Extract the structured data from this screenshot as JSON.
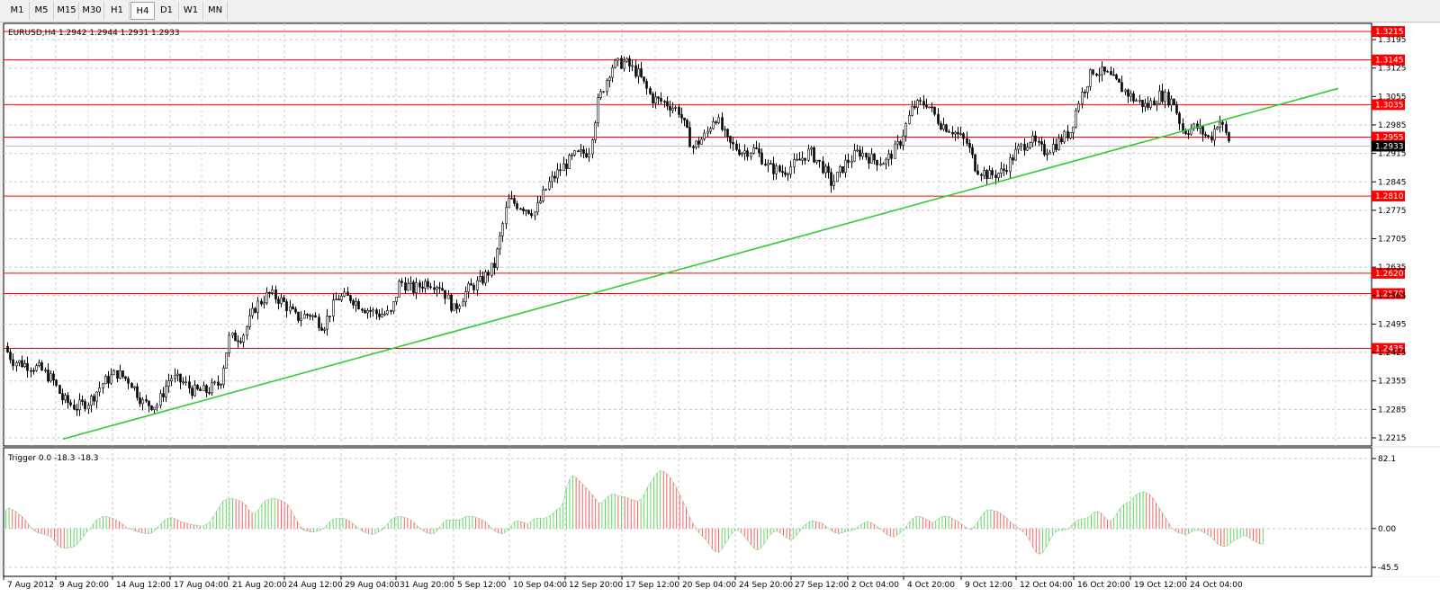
{
  "toolbar": {
    "timeframes": [
      "M1",
      "M5",
      "M15",
      "M30",
      "H1",
      "H4",
      "D1",
      "W1",
      "MN"
    ],
    "active": "H4"
  },
  "chart_data": [
    {
      "type": "candlestick",
      "title": "EURUSD,H4  1.2942 1.2944 1.2931 1.2933",
      "ylim": [
        1.2195,
        1.3235
      ],
      "y_ticks": [
        1.3195,
        1.3125,
        1.3055,
        1.2985,
        1.2915,
        1.2845,
        1.2775,
        1.2705,
        1.2635,
        1.2565,
        1.2495,
        1.2425,
        1.2355,
        1.2285,
        1.2215
      ],
      "x_labels": [
        "7 Aug 2012",
        "9 Aug 20:00",
        "14 Aug 12:00",
        "17 Aug 04:00",
        "21 Aug 20:00",
        "24 Aug 12:00",
        "29 Aug 04:00",
        "31 Aug 20:00",
        "5 Sep 12:00",
        "10 Sep 04:00",
        "12 Sep 20:00",
        "17 Sep 12:00",
        "20 Sep 04:00",
        "24 Sep 20:00",
        "27 Sep 12:00",
        "2 Oct 04:00",
        "4 Oct 20:00",
        "9 Oct 12:00",
        "12 Oct 04:00",
        "16 Oct 20:00",
        "19 Oct 12:00",
        "24 Oct 04:00"
      ],
      "level_labels": [
        "1.3215",
        "1.3145",
        "1.3035",
        "1.2955",
        "1.2810",
        "1.2620",
        "1.2570",
        "1.2435"
      ],
      "levels": [
        1.3215,
        1.3145,
        1.3035,
        1.2955,
        1.281,
        1.262,
        1.257,
        1.2435
      ],
      "current_price_label": "1.2933",
      "current_price": 1.2933,
      "price_path": [
        [
          0,
          1.244
        ],
        [
          10,
          1.2405
        ],
        [
          25,
          1.2395
        ],
        [
          40,
          1.2385
        ],
        [
          55,
          1.2355
        ],
        [
          65,
          1.231
        ],
        [
          80,
          1.229
        ],
        [
          95,
          1.2305
        ],
        [
          110,
          1.235
        ],
        [
          125,
          1.2375
        ],
        [
          140,
          1.2355
        ],
        [
          155,
          1.23
        ],
        [
          170,
          1.2295
        ],
        [
          185,
          1.2365
        ],
        [
          200,
          1.235
        ],
        [
          210,
          1.233
        ],
        [
          225,
          1.233
        ],
        [
          240,
          1.235
        ],
        [
          250,
          1.246
        ],
        [
          265,
          1.2465
        ],
        [
          280,
          1.254
        ],
        [
          295,
          1.257
        ],
        [
          310,
          1.255
        ],
        [
          325,
          1.251
        ],
        [
          340,
          1.252
        ],
        [
          355,
          1.249
        ],
        [
          370,
          1.256
        ],
        [
          385,
          1.256
        ],
        [
          400,
          1.2535
        ],
        [
          415,
          1.252
        ],
        [
          430,
          1.252
        ],
        [
          440,
          1.26
        ],
        [
          455,
          1.258
        ],
        [
          470,
          1.26
        ],
        [
          485,
          1.259
        ],
        [
          500,
          1.253
        ],
        [
          515,
          1.258
        ],
        [
          530,
          1.26
        ],
        [
          545,
          1.264
        ],
        [
          560,
          1.28
        ],
        [
          575,
          1.2785
        ],
        [
          590,
          1.277
        ],
        [
          605,
          1.284
        ],
        [
          620,
          1.288
        ],
        [
          635,
          1.291
        ],
        [
          650,
          1.292
        ],
        [
          660,
          1.304
        ],
        [
          675,
          1.313
        ],
        [
          690,
          1.314
        ],
        [
          705,
          1.311
        ],
        [
          720,
          1.305
        ],
        [
          735,
          1.304
        ],
        [
          750,
          1.302
        ],
        [
          765,
          1.293
        ],
        [
          780,
          1.296
        ],
        [
          790,
          1.301
        ],
        [
          805,
          1.294
        ],
        [
          820,
          1.292
        ],
        [
          835,
          1.2925
        ],
        [
          850,
          1.288
        ],
        [
          865,
          1.287
        ],
        [
          880,
          1.289
        ],
        [
          895,
          1.292
        ],
        [
          910,
          1.288
        ],
        [
          920,
          1.284
        ],
        [
          935,
          1.289
        ],
        [
          950,
          1.292
        ],
        [
          965,
          1.29
        ],
        [
          980,
          1.2895
        ],
        [
          995,
          1.294
        ],
        [
          1010,
          1.303
        ],
        [
          1025,
          1.304
        ],
        [
          1040,
          1.299
        ],
        [
          1055,
          1.297
        ],
        [
          1070,
          1.294
        ],
        [
          1080,
          1.288
        ],
        [
          1095,
          1.286
        ],
        [
          1110,
          1.287
        ],
        [
          1125,
          1.292
        ],
        [
          1140,
          1.295
        ],
        [
          1155,
          1.292
        ],
        [
          1170,
          1.294
        ],
        [
          1185,
          1.297
        ],
        [
          1195,
          1.305
        ],
        [
          1210,
          1.312
        ],
        [
          1225,
          1.311
        ],
        [
          1240,
          1.308
        ],
        [
          1255,
          1.305
        ],
        [
          1270,
          1.303
        ],
        [
          1285,
          1.306
        ],
        [
          1300,
          1.304
        ],
        [
          1310,
          1.297
        ],
        [
          1325,
          1.298
        ],
        [
          1340,
          1.295
        ],
        [
          1350,
          1.3
        ],
        [
          1360,
          1.295
        ],
        [
          1368,
          1.2933
        ]
      ],
      "trendline": [
        [
          0,
          1.2212
        ],
        [
          1480,
          1.3075
        ]
      ]
    },
    {
      "type": "bar",
      "title": "Trigger 0.0 -18.3 -18.3",
      "ylim": [
        -45.5,
        82.1
      ],
      "y_ticks": [
        82.1,
        0.0,
        -45.5
      ],
      "x_start": 0,
      "x_step": 5,
      "values": [
        22,
        24,
        22,
        20,
        17,
        14,
        10,
        5,
        0,
        -3,
        -5,
        -6,
        -7,
        -8,
        -10,
        -14,
        -20,
        -22,
        -23,
        -23,
        -22,
        -21,
        -18,
        -14,
        -9,
        -4,
        0,
        5,
        10,
        12,
        14,
        14,
        13,
        12,
        10,
        8,
        5,
        2,
        0,
        -1,
        -3,
        -4,
        -5,
        -6,
        -6,
        -5,
        -2,
        2,
        6,
        10,
        12,
        13,
        12,
        10,
        8,
        7,
        6,
        5,
        4,
        4,
        3,
        3,
        5,
        8,
        14,
        20,
        26,
        32,
        34,
        35,
        35,
        34,
        33,
        31,
        28,
        22,
        18,
        18,
        22,
        28,
        32,
        34,
        35,
        35,
        34,
        33,
        31,
        28,
        22,
        15,
        8,
        2,
        -2,
        -3,
        -4,
        -4,
        -3,
        -2,
        0,
        4,
        8,
        11,
        12,
        12,
        12,
        11,
        9,
        6,
        3,
        0,
        -3,
        -5,
        -6,
        -7,
        -6,
        -4,
        -2,
        2,
        6,
        11,
        13,
        14,
        14,
        13,
        12,
        10,
        7,
        3,
        0,
        -3,
        -5,
        -6,
        -6,
        -3,
        2,
        7,
        10,
        10,
        10,
        10,
        10,
        12,
        14,
        14,
        14,
        13,
        12,
        10,
        8,
        4,
        0,
        -3,
        -5,
        -6,
        -5,
        -2,
        3,
        8,
        9,
        8,
        7,
        5,
        8,
        11,
        12,
        12,
        12,
        13,
        15,
        18,
        22,
        24,
        30,
        48,
        58,
        62,
        60,
        56,
        52,
        48,
        44,
        40,
        35,
        30,
        30,
        34,
        38,
        40,
        40,
        38,
        38,
        37,
        36,
        34,
        33,
        32,
        34,
        40,
        48,
        54,
        60,
        65,
        68,
        67,
        64,
        60,
        54,
        48,
        40,
        32,
        24,
        14,
        6,
        0,
        -5,
        -9,
        -13,
        -18,
        -24,
        -27,
        -28,
        -24,
        -18,
        -12,
        -6,
        -2,
        -2,
        -5,
        -9,
        -14,
        -19,
        -23,
        -25,
        -23,
        -18,
        -12,
        -7,
        -4,
        -3,
        -5,
        -8,
        -11,
        -13,
        -12,
        -8,
        -3,
        2,
        5,
        8,
        9,
        8,
        7,
        6,
        3,
        0,
        -3,
        -5,
        -6,
        -5,
        -4,
        -3,
        -2,
        -1,
        2,
        5,
        7,
        8,
        7,
        5,
        2,
        -1,
        -4,
        -7,
        -9,
        -10,
        -8,
        -5,
        -2,
        3,
        8,
        12,
        14,
        14,
        13,
        11,
        9,
        7,
        9,
        12,
        14,
        14,
        14,
        12,
        10,
        8,
        5,
        2,
        0,
        -1,
        3,
        8,
        14,
        19,
        22,
        22,
        21,
        20,
        18,
        15,
        12,
        8,
        5,
        2,
        -1,
        -4,
        -8,
        -14,
        -22,
        -28,
        -30,
        -28,
        -22,
        -15,
        -8,
        -4,
        -2,
        -2,
        -1,
        0,
        4,
        8,
        10,
        11,
        12,
        13,
        16,
        19,
        20,
        18,
        14,
        10,
        9,
        12,
        18,
        24,
        28,
        30,
        32,
        36,
        40,
        42,
        43,
        42,
        40,
        36,
        30,
        24,
        18,
        12,
        6,
        0,
        -3,
        -5,
        -6,
        -7,
        -6,
        -4,
        -2,
        -2,
        -3,
        -5,
        -7,
        -10,
        -14,
        -18,
        -20,
        -21,
        -20,
        -17,
        -14,
        -12,
        -10,
        -8,
        -9,
        -11,
        -14,
        -16,
        -18,
        -18
      ]
    }
  ]
}
